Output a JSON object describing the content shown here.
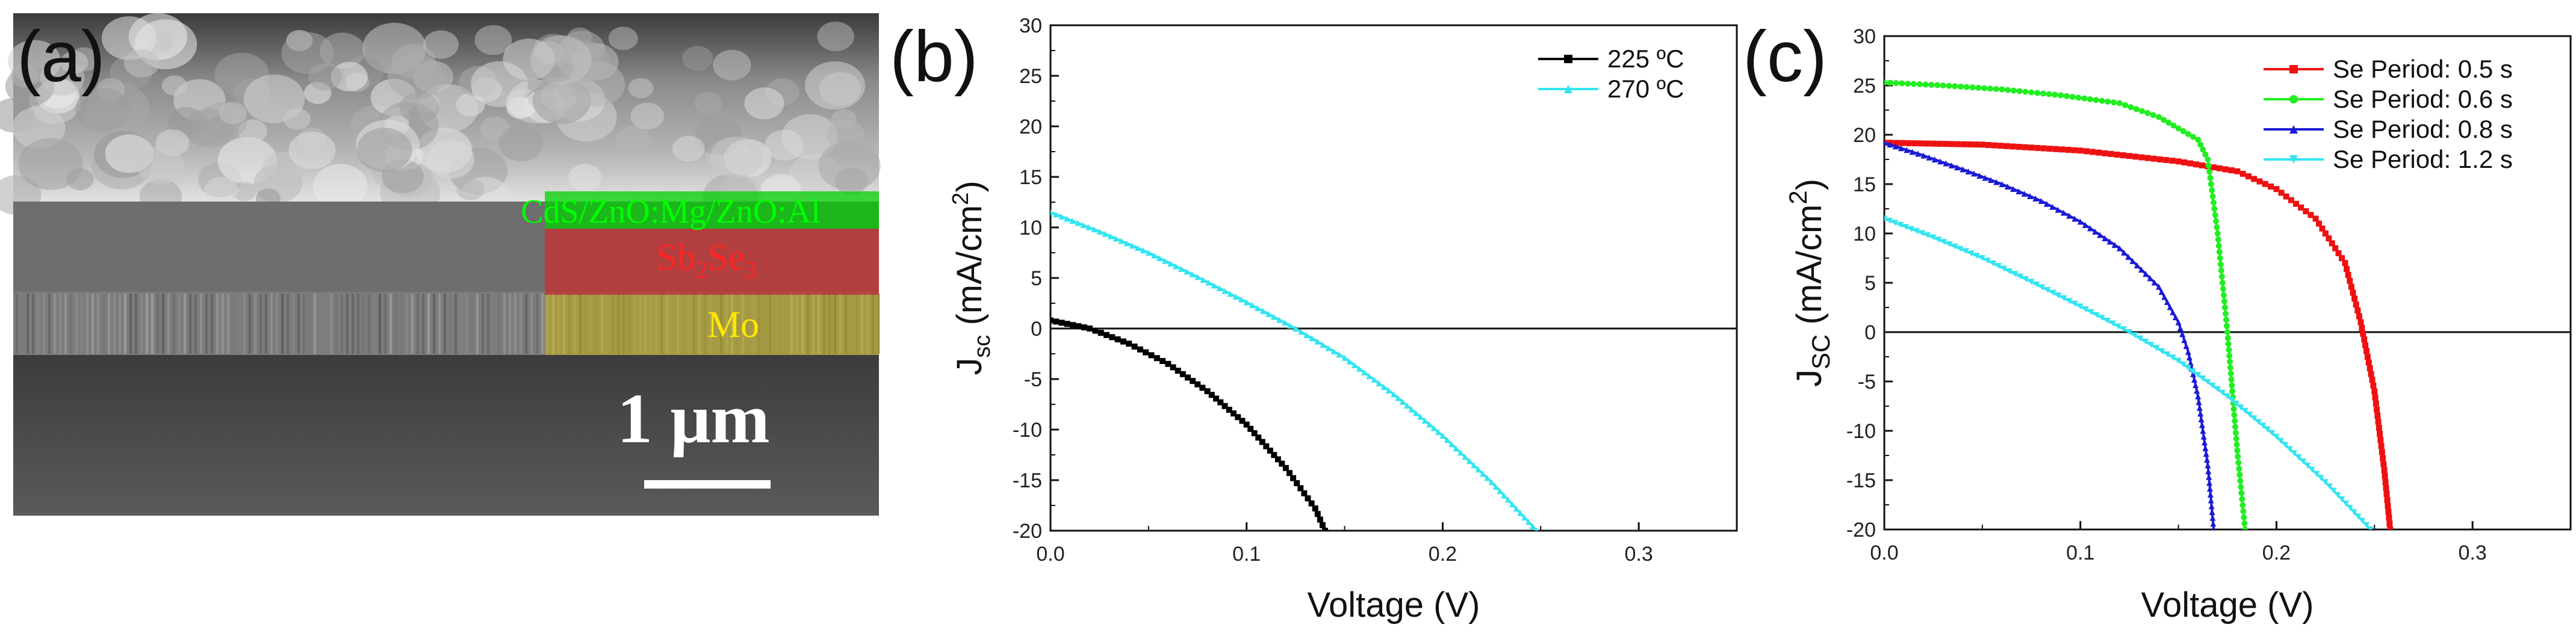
{
  "panel_labels": {
    "a": "(a)",
    "b": "(b)",
    "c": "(c)"
  },
  "sem_image": {
    "scale_bar": "1 μm",
    "layers": [
      {
        "name": "CdS/ZnO:Mg/ZnO:Al",
        "color": "#00e000"
      },
      {
        "name": "Sb",
        "sub1": "2",
        "mid": "Se",
        "sub2": "3",
        "color": "#ff2020"
      },
      {
        "name": "Mo",
        "color": "#f5e000"
      }
    ]
  },
  "chart_data": [
    {
      "type": "line",
      "title": "",
      "xlabel": "Voltage (V)",
      "ylabel": {
        "main": "J",
        "sub": "sc",
        "rest": " (mA/cm",
        "sup": "2",
        "close": ")"
      },
      "xlim": [
        0.0,
        0.35
      ],
      "ylim": [
        -20,
        30
      ],
      "xticks": [
        "0.0",
        "0.1",
        "0.2",
        "0.3"
      ],
      "yticks": [
        "-20",
        "-15",
        "-10",
        "-5",
        "0",
        "5",
        "10",
        "15",
        "20",
        "25",
        "30"
      ],
      "legend": "top-right",
      "series": [
        {
          "name": "225 ºC",
          "color": "#000000",
          "marker": "square",
          "x": [
            0.0,
            0.02,
            0.04,
            0.06,
            0.08,
            0.1,
            0.12,
            0.135,
            0.14
          ],
          "y": [
            0.8,
            0.0,
            -1.5,
            -3.5,
            -6.2,
            -9.5,
            -13.8,
            -17.8,
            -20.0
          ]
        },
        {
          "name": "270 ºC",
          "color": "#33e5f0",
          "marker": "triangle",
          "x": [
            0.0,
            0.025,
            0.05,
            0.075,
            0.1,
            0.125,
            0.15,
            0.175,
            0.2,
            0.225,
            0.248
          ],
          "y": [
            11.5,
            9.6,
            7.5,
            5.1,
            2.6,
            0.0,
            -2.9,
            -6.5,
            -10.6,
            -15.2,
            -20.0
          ]
        }
      ]
    },
    {
      "type": "line",
      "title": "",
      "xlabel": "Voltage (V)",
      "ylabel": {
        "main": "J",
        "sub": "SC",
        "rest": " (mA/cm",
        "sup": "2",
        "close": ")"
      },
      "xlim": [
        0.0,
        0.35
      ],
      "ylim": [
        -20,
        30
      ],
      "xticks": [
        "0.0",
        "0.1",
        "0.2",
        "0.3"
      ],
      "yticks": [
        "-20",
        "-15",
        "-10",
        "-5",
        "0",
        "5",
        "10",
        "15",
        "20",
        "25",
        "30"
      ],
      "legend": "top-right",
      "series": [
        {
          "name": "Se Period: 0.5 s",
          "color": "#ee1111",
          "marker": "square",
          "x": [
            0.0,
            0.05,
            0.1,
            0.15,
            0.18,
            0.2,
            0.22,
            0.235,
            0.243,
            0.25,
            0.255,
            0.258
          ],
          "y": [
            19.2,
            19.0,
            18.4,
            17.3,
            16.3,
            14.5,
            11.5,
            7.0,
            1.0,
            -6.0,
            -14.0,
            -20.0
          ]
        },
        {
          "name": "Se Period: 0.6 s",
          "color": "#22ee22",
          "marker": "circle",
          "x": [
            0.0,
            0.03,
            0.06,
            0.09,
            0.12,
            0.14,
            0.16,
            0.165,
            0.17,
            0.175,
            0.18,
            0.184
          ],
          "y": [
            25.3,
            25.0,
            24.6,
            24.0,
            23.2,
            21.8,
            19.5,
            17.5,
            10.0,
            0.0,
            -12.0,
            -20.0
          ]
        },
        {
          "name": "Se Period: 0.8 s",
          "color": "#1a1ad6",
          "marker": "triangle",
          "x": [
            0.0,
            0.02,
            0.04,
            0.06,
            0.08,
            0.1,
            0.12,
            0.14,
            0.15,
            0.155,
            0.16,
            0.165,
            0.168
          ],
          "y": [
            19.2,
            17.9,
            16.5,
            15.0,
            13.3,
            11.2,
            8.5,
            4.6,
            1.0,
            -2.0,
            -6.5,
            -13.5,
            -20.0
          ]
        },
        {
          "name": "Se Period: 1.2 s",
          "color": "#33e5f0",
          "marker": "triangle-down",
          "x": [
            0.0,
            0.025,
            0.05,
            0.075,
            0.1,
            0.125,
            0.15,
            0.175,
            0.2,
            0.225,
            0.248
          ],
          "y": [
            11.5,
            9.6,
            7.5,
            5.1,
            2.6,
            0.0,
            -2.9,
            -6.5,
            -10.6,
            -15.2,
            -20.0
          ]
        }
      ]
    }
  ]
}
